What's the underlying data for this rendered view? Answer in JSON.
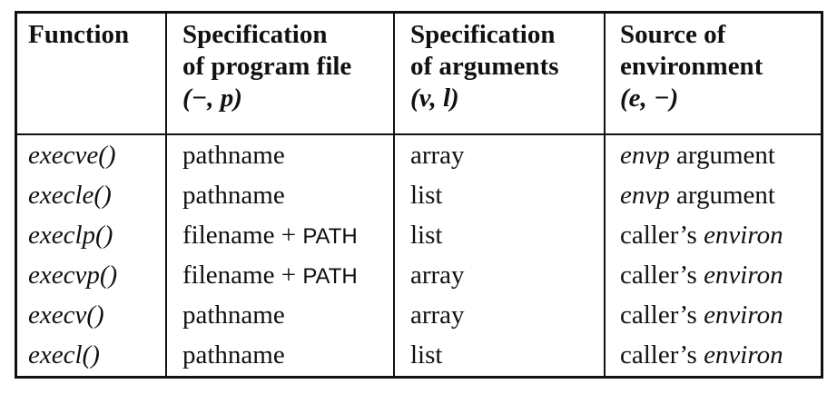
{
  "headers": [
    {
      "lines": [
        "Function"
      ]
    },
    {
      "lines": [
        "Specification",
        "of program file"
      ],
      "tag": "(−, p)"
    },
    {
      "lines": [
        "Specification",
        "of arguments"
      ],
      "tag": "(v, l)"
    },
    {
      "lines": [
        "Source of",
        "environment"
      ],
      "tag": "(e, −)"
    }
  ],
  "rows": [
    {
      "fn": "execve()",
      "file": "pathname",
      "file_extra": "",
      "args": "array",
      "env_em": "envp",
      "env_text": " argument",
      "env_mode": "arg"
    },
    {
      "fn": "execle()",
      "file": "pathname",
      "file_extra": "",
      "args": "list",
      "env_em": "envp",
      "env_text": " argument",
      "env_mode": "arg"
    },
    {
      "fn": "execlp()",
      "file": "filename + ",
      "file_extra": "PATH",
      "args": "list",
      "env_em": "environ",
      "env_text": "caller’s ",
      "env_mode": "caller"
    },
    {
      "fn": "execvp()",
      "file": "filename + ",
      "file_extra": "PATH",
      "args": "array",
      "env_em": "environ",
      "env_text": "caller’s ",
      "env_mode": "caller"
    },
    {
      "fn": "execv()",
      "file": "pathname",
      "file_extra": "",
      "args": "array",
      "env_em": "environ",
      "env_text": "caller’s ",
      "env_mode": "caller"
    },
    {
      "fn": "execl()",
      "file": "pathname",
      "file_extra": "",
      "args": "list",
      "env_em": "environ",
      "env_text": "caller’s ",
      "env_mode": "caller"
    }
  ]
}
